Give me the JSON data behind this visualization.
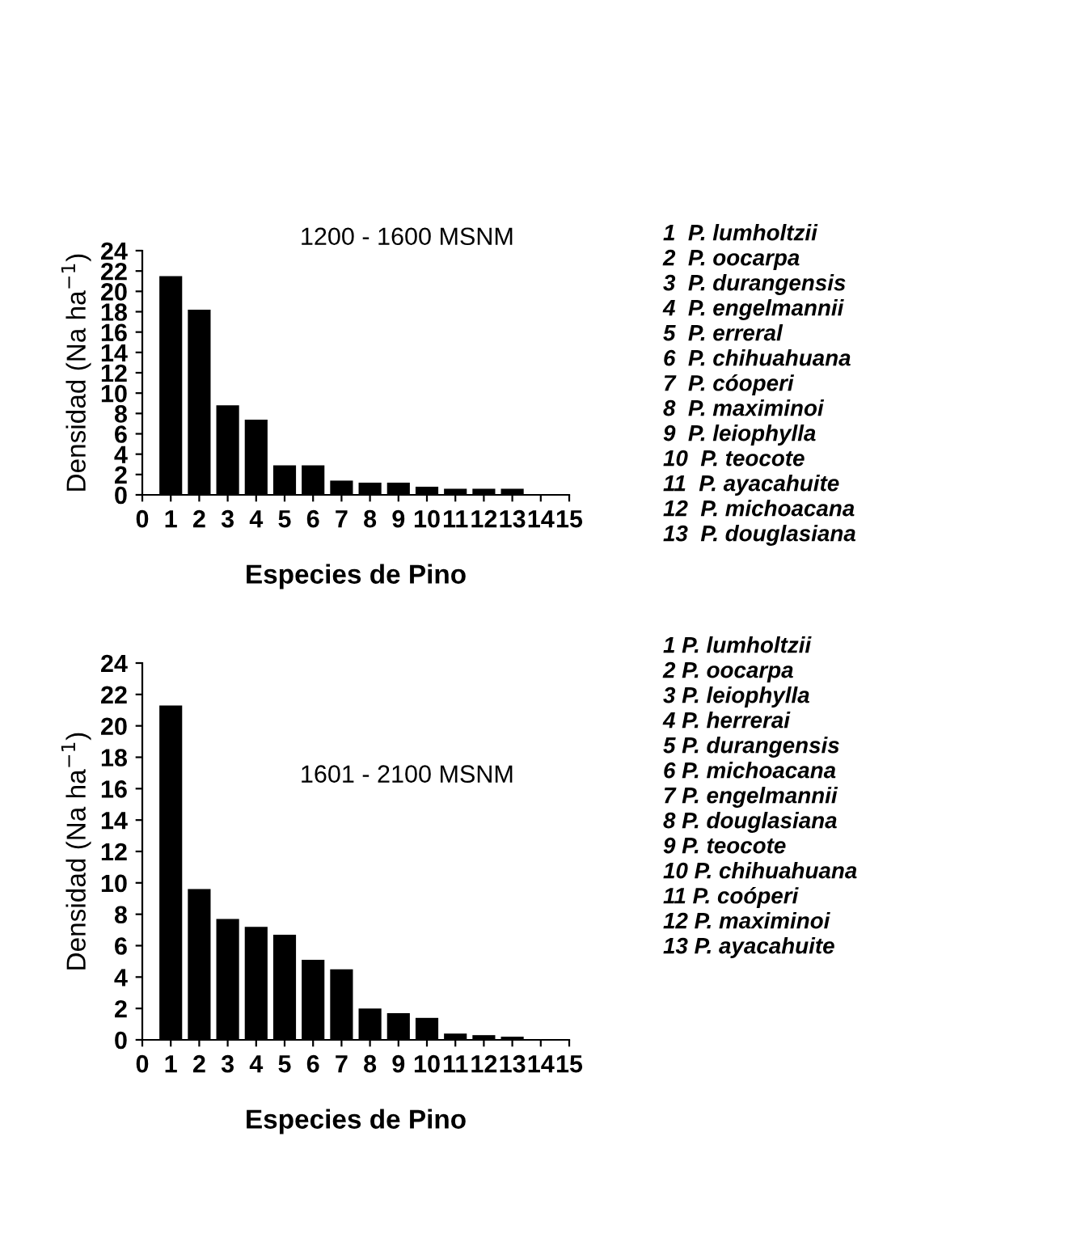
{
  "chart_data": [
    {
      "type": "bar",
      "xlabel": "Especies de Pino",
      "ylabel": "Densidad (Na ha$^{−1}$)",
      "x": [
        1,
        2,
        3,
        4,
        5,
        6,
        7,
        8,
        9,
        10,
        11,
        12,
        13
      ],
      "values": [
        21.5,
        18.2,
        8.8,
        7.4,
        2.9,
        2.9,
        1.4,
        1.2,
        1.2,
        0.8,
        0.6,
        0.6,
        0.6
      ],
      "color": "#000000",
      "xlim": [
        0,
        15
      ],
      "xticks": [
        0,
        1,
        2,
        3,
        4,
        5,
        6,
        7,
        8,
        9,
        10,
        11,
        12,
        13,
        14,
        15
      ],
      "ylim": [
        0,
        24
      ],
      "yticks": [
        0,
        2,
        4,
        6,
        8,
        10,
        12,
        14,
        16,
        18,
        20,
        22,
        24
      ],
      "grid": false,
      "legend": false,
      "annotations": [
        "1200 - 1600 MSNM",
        "1  P. lumholtzii",
        "2  P. oocarpa",
        "3  P. durangensis",
        "4  P. engelmannii",
        "5  P. erreral",
        "6  P. chihuahuana",
        "7  P. cóoperi",
        "8  P. maximinoi",
        "9  P. leiophylla",
        "10  P. teocote",
        "11  P. ayacahuite",
        "12  P. michoacana",
        "13  P. douglasiana"
      ]
    },
    {
      "type": "bar",
      "xlabel": "Especies de Pino",
      "ylabel": "Densidad (Na ha$^{−1}$)",
      "x": [
        1,
        2,
        3,
        4,
        5,
        6,
        7,
        8,
        9,
        10,
        11,
        12,
        13
      ],
      "values": [
        21.3,
        9.6,
        7.7,
        7.2,
        6.7,
        5.1,
        4.5,
        2.0,
        1.7,
        1.4,
        0.4,
        0.3,
        0.2
      ],
      "color": "#000000",
      "xlim": [
        0,
        15
      ],
      "xticks": [
        0,
        1,
        2,
        3,
        4,
        5,
        6,
        7,
        8,
        9,
        10,
        11,
        12,
        13,
        14,
        15
      ],
      "ylim": [
        0,
        24
      ],
      "yticks": [
        0,
        2,
        4,
        6,
        8,
        10,
        12,
        14,
        16,
        18,
        20,
        22,
        24
      ],
      "grid": false,
      "legend": false,
      "annotations": [
        "1601 - 2100 MSNM",
        "1 P. lumholtzii",
        "2 P. oocarpa",
        "3 P. leiophylla",
        "4 P. herrerai",
        "5 P. durangensis",
        "6 P. michoacana",
        "7 P. engelmannii",
        "8 P. douglasiana",
        "9 P. teocote",
        "10 P. chihuahuana",
        "11 P. coóperi",
        "12 P. maximinoi",
        "13 P. ayacahuite"
      ]
    }
  ]
}
